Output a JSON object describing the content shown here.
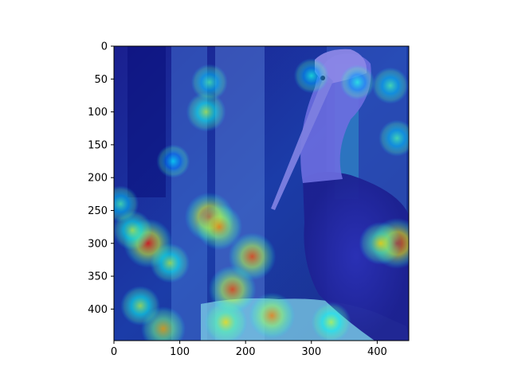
{
  "chart_data": {
    "type": "heatmap",
    "description_of_image": "",
    "xlim": [
      0,
      448
    ],
    "ylim": [
      448,
      0
    ],
    "x_ticks": [
      0,
      100,
      200,
      300,
      400
    ],
    "y_ticks": [
      0,
      50,
      100,
      150,
      200,
      250,
      300,
      350,
      400
    ],
    "x_tick_labels": [
      "0",
      "100",
      "200",
      "300",
      "400"
    ],
    "y_tick_labels": [
      "0",
      "50",
      "100",
      "150",
      "200",
      "250",
      "300",
      "350",
      "400"
    ],
    "grid": false,
    "colormap": "jet",
    "colors": {
      "low": "#00008f",
      "mid": "#00ffff",
      "high": "#ff2000"
    },
    "hotspots": [
      {
        "x": 145,
        "y": 260,
        "value": 0.85
      },
      {
        "x": 160,
        "y": 275,
        "value": 0.75
      },
      {
        "x": 52,
        "y": 300,
        "value": 0.85
      },
      {
        "x": 28,
        "y": 280,
        "value": 0.55
      },
      {
        "x": 85,
        "y": 330,
        "value": 0.55
      },
      {
        "x": 210,
        "y": 320,
        "value": 0.8
      },
      {
        "x": 180,
        "y": 370,
        "value": 0.8
      },
      {
        "x": 240,
        "y": 410,
        "value": 0.75
      },
      {
        "x": 170,
        "y": 420,
        "value": 0.65
      },
      {
        "x": 75,
        "y": 430,
        "value": 0.7
      },
      {
        "x": 40,
        "y": 395,
        "value": 0.55
      },
      {
        "x": 430,
        "y": 300,
        "value": 0.9
      },
      {
        "x": 405,
        "y": 300,
        "value": 0.65
      },
      {
        "x": 140,
        "y": 100,
        "value": 0.55
      },
      {
        "x": 145,
        "y": 55,
        "value": 0.45
      },
      {
        "x": 300,
        "y": 45,
        "value": 0.4
      },
      {
        "x": 370,
        "y": 55,
        "value": 0.4
      },
      {
        "x": 430,
        "y": 140,
        "value": 0.45
      },
      {
        "x": 90,
        "y": 175,
        "value": 0.35
      },
      {
        "x": 420,
        "y": 60,
        "value": 0.45
      },
      {
        "x": 10,
        "y": 240,
        "value": 0.45
      },
      {
        "x": 330,
        "y": 420,
        "value": 0.55
      }
    ]
  }
}
